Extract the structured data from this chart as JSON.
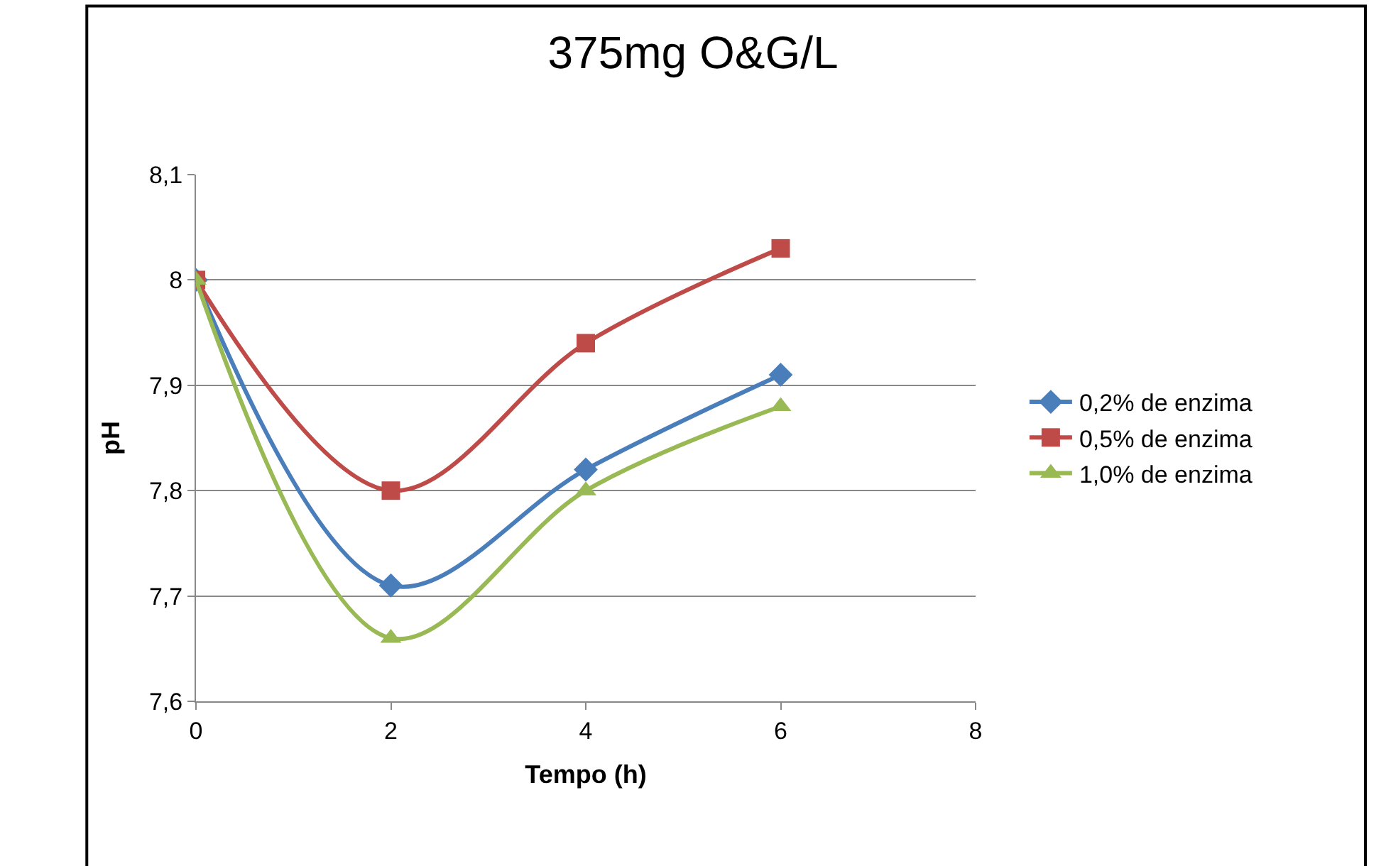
{
  "chart_data": {
    "type": "line",
    "title": "375mg O&G/L",
    "xlabel": "Tempo (h)",
    "ylabel": "pH",
    "x": [
      0,
      2,
      4,
      6
    ],
    "series": [
      {
        "name": "0,2% de enzima",
        "color": "#4a7ebb",
        "marker": "diamond",
        "values": [
          8.0,
          7.71,
          7.82,
          7.91
        ]
      },
      {
        "name": "0,5% de enzima",
        "color": "#be4b48",
        "marker": "square",
        "values": [
          8.0,
          7.8,
          7.94,
          8.03
        ]
      },
      {
        "name": "1,0% de enzima",
        "color": "#98b954",
        "marker": "triangle",
        "values": [
          8.0,
          7.66,
          7.8,
          7.88
        ]
      }
    ],
    "xlim": [
      0,
      8
    ],
    "xticks": [
      0,
      2,
      4,
      6,
      8
    ],
    "ylim": [
      7.6,
      8.1
    ],
    "yticks": [
      {
        "value": 7.6,
        "label": "7,6"
      },
      {
        "value": 7.7,
        "label": "7,7"
      },
      {
        "value": 7.8,
        "label": "7,8"
      },
      {
        "value": 7.9,
        "label": "7,9"
      },
      {
        "value": 8,
        "label": "8"
      },
      {
        "value": 8.1,
        "label": "8,1"
      }
    ],
    "grid": "y",
    "legend": "right",
    "line_style": "solid"
  }
}
